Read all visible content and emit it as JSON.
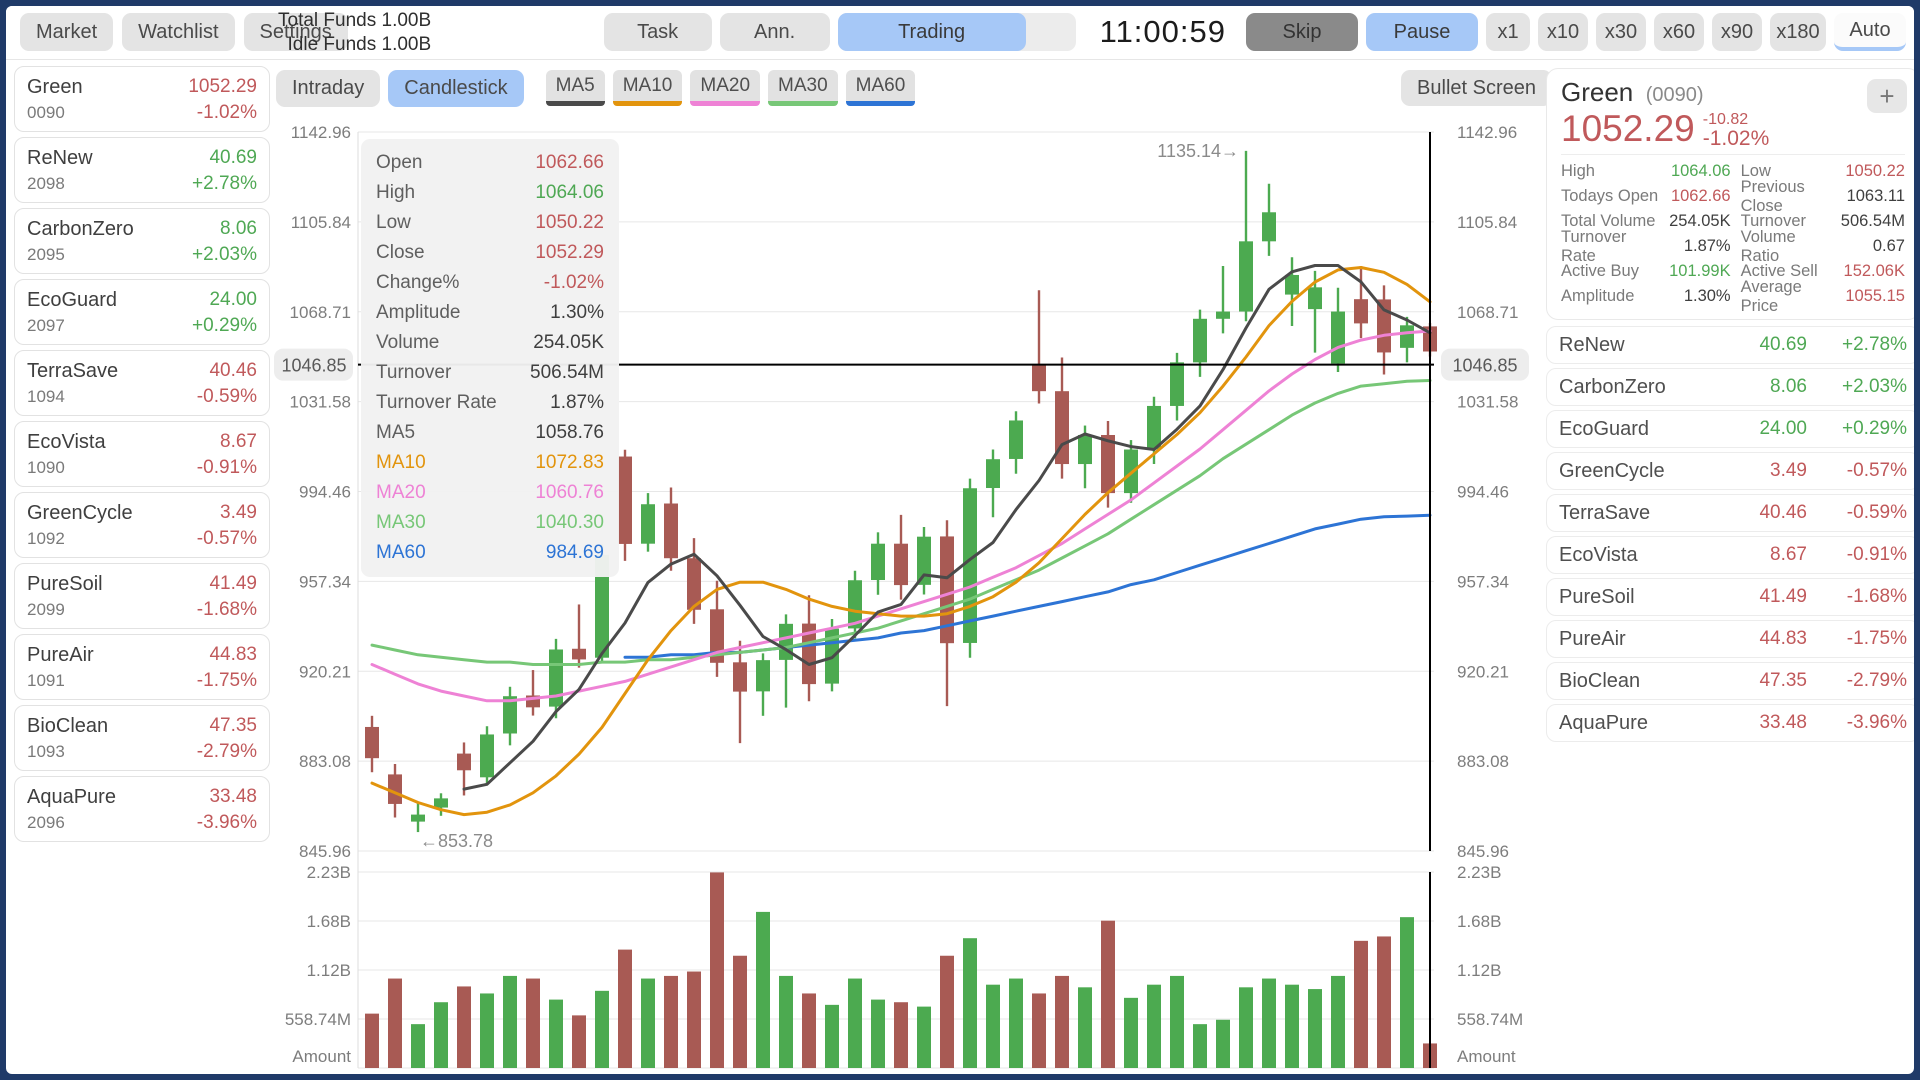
{
  "colors": {
    "up": "#4fa854",
    "down": "#c0595b",
    "candle_up": "#4caa50",
    "candle_down": "#a85a54",
    "dark": "#3f3f3f",
    "accent": "#a6c8f7",
    "ma5": "#4a4a4a",
    "ma10": "#e2940d",
    "ma20": "#ee82d5",
    "ma30": "#77c777",
    "ma60": "#2d74d5",
    "grid": "#e7e7e7",
    "axis_text": "#7d7d7d",
    "crosshair": "#000000",
    "pill_bg": "#ededed"
  },
  "topbar": {
    "nav": [
      "Market",
      "Watchlist",
      "Settings"
    ],
    "funds_line1": "Total Funds 1.00B",
    "funds_line2": "Idle Funds 1.00B",
    "task": "Task",
    "ann": "Ann.",
    "trading": "Trading",
    "clock": "11:00:59",
    "skip": "Skip",
    "pause": "Pause",
    "speeds": [
      "x1",
      "x10",
      "x30",
      "x60",
      "x90",
      "x180"
    ],
    "auto": "Auto"
  },
  "watchlist": [
    {
      "name": "Green",
      "code": "0090",
      "price": "1052.29",
      "pct": "-1.02%",
      "dir": "down"
    },
    {
      "name": "ReNew",
      "code": "2098",
      "price": "40.69",
      "pct": "+2.78%",
      "dir": "up"
    },
    {
      "name": "CarbonZero",
      "code": "2095",
      "price": "8.06",
      "pct": "+2.03%",
      "dir": "up"
    },
    {
      "name": "EcoGuard",
      "code": "2097",
      "price": "24.00",
      "pct": "+0.29%",
      "dir": "up"
    },
    {
      "name": "TerraSave",
      "code": "1094",
      "price": "40.46",
      "pct": "-0.59%",
      "dir": "down"
    },
    {
      "name": "EcoVista",
      "code": "1090",
      "price": "8.67",
      "pct": "-0.91%",
      "dir": "down"
    },
    {
      "name": "GreenCycle",
      "code": "1092",
      "price": "3.49",
      "pct": "-0.57%",
      "dir": "down"
    },
    {
      "name": "PureSoil",
      "code": "2099",
      "price": "41.49",
      "pct": "-1.68%",
      "dir": "down"
    },
    {
      "name": "PureAir",
      "code": "1091",
      "price": "44.83",
      "pct": "-1.75%",
      "dir": "down"
    },
    {
      "name": "BioClean",
      "code": "1093",
      "price": "47.35",
      "pct": "-2.79%",
      "dir": "down"
    },
    {
      "name": "AquaPure",
      "code": "2096",
      "price": "33.48",
      "pct": "-3.96%",
      "dir": "down"
    }
  ],
  "chart_header": {
    "tabs": [
      {
        "label": "Intraday",
        "active": false
      },
      {
        "label": "Candlestick",
        "active": true
      }
    ],
    "ma_buttons": [
      {
        "label": "MA5",
        "color": "#4a4a4a"
      },
      {
        "label": "MA10",
        "color": "#e2940d"
      },
      {
        "label": "MA20",
        "color": "#ee82d5"
      },
      {
        "label": "MA30",
        "color": "#77c777"
      },
      {
        "label": "MA60",
        "color": "#2d74d5"
      }
    ],
    "bullet_screen": "Bullet Screen"
  },
  "tooltip": {
    "rows": [
      {
        "label": "Open",
        "value": "1062.66",
        "c": "down",
        "lc": "dim"
      },
      {
        "label": "High",
        "value": "1064.06",
        "c": "up",
        "lc": "dim"
      },
      {
        "label": "Low",
        "value": "1050.22",
        "c": "down",
        "lc": "dim"
      },
      {
        "label": "Close",
        "value": "1052.29",
        "c": "down",
        "lc": "dim"
      },
      {
        "label": "Change%",
        "value": "-1.02%",
        "c": "down",
        "lc": "dim"
      },
      {
        "label": "Amplitude",
        "value": "1.30%",
        "c": "dark",
        "lc": "dim"
      },
      {
        "label": "Volume",
        "value": "254.05K",
        "c": "dark",
        "lc": "dim"
      },
      {
        "label": "Turnover",
        "value": "506.54M",
        "c": "dark",
        "lc": "dim"
      },
      {
        "label": "Turnover Rate",
        "value": "1.87%",
        "c": "dark",
        "lc": "dim"
      },
      {
        "label": "MA5",
        "value": "1058.76",
        "c": "dark",
        "lc": "dim"
      },
      {
        "label": "MA10",
        "value": "1072.83",
        "c": "ma10",
        "lc": "ma10"
      },
      {
        "label": "MA20",
        "value": "1060.76",
        "c": "ma20",
        "lc": "ma20"
      },
      {
        "label": "MA30",
        "value": "1040.30",
        "c": "ma30",
        "lc": "ma30"
      },
      {
        "label": "MA60",
        "value": "984.69",
        "c": "ma60",
        "lc": "ma60"
      }
    ]
  },
  "quote": {
    "name": "Green",
    "code": "(0090)",
    "add_button": "+",
    "price": "1052.29",
    "change_abs": "-10.82",
    "change_pct": "-1.02%",
    "dir": "down",
    "stats": [
      {
        "l": "High",
        "v": "1064.06",
        "c": "up"
      },
      {
        "l": "Low",
        "v": "1050.22",
        "c": "down"
      },
      {
        "l": "Todays Open",
        "v": "1062.66",
        "c": "down"
      },
      {
        "l": "Previous Close",
        "v": "1063.11",
        "c": "dark"
      },
      {
        "l": "Total Volume",
        "v": "254.05K",
        "c": "dark"
      },
      {
        "l": "Turnover",
        "v": "506.54M",
        "c": "dark"
      },
      {
        "l": "Turnover Rate",
        "v": "1.87%",
        "c": "dark"
      },
      {
        "l": "Volume Ratio",
        "v": "0.67",
        "c": "dark"
      },
      {
        "l": "Active Buy",
        "v": "101.99K",
        "c": "up"
      },
      {
        "l": "Active Sell",
        "v": "152.06K",
        "c": "down"
      },
      {
        "l": "Amplitude",
        "v": "1.30%",
        "c": "dark"
      },
      {
        "l": "Average Price",
        "v": "1055.15",
        "c": "down"
      }
    ],
    "list": [
      {
        "name": "ReNew",
        "price": "40.69",
        "pct": "+2.78%",
        "dir": "up"
      },
      {
        "name": "CarbonZero",
        "price": "8.06",
        "pct": "+2.03%",
        "dir": "up"
      },
      {
        "name": "EcoGuard",
        "price": "24.00",
        "pct": "+0.29%",
        "dir": "up"
      },
      {
        "name": "GreenCycle",
        "price": "3.49",
        "pct": "-0.57%",
        "dir": "down"
      },
      {
        "name": "TerraSave",
        "price": "40.46",
        "pct": "-0.59%",
        "dir": "down"
      },
      {
        "name": "EcoVista",
        "price": "8.67",
        "pct": "-0.91%",
        "dir": "down"
      },
      {
        "name": "PureSoil",
        "price": "41.49",
        "pct": "-1.68%",
        "dir": "down"
      },
      {
        "name": "PureAir",
        "price": "44.83",
        "pct": "-1.75%",
        "dir": "down"
      },
      {
        "name": "BioClean",
        "price": "47.35",
        "pct": "-2.79%",
        "dir": "down"
      },
      {
        "name": "AquaPure",
        "price": "33.48",
        "pct": "-3.96%",
        "dir": "down"
      }
    ]
  },
  "chart_data": {
    "type": "candlestick+volume",
    "price_axis": {
      "max": 1142.96,
      "min": 845.96,
      "ticks": [
        "1142.96",
        "1105.84",
        "1068.71",
        "1031.58",
        "994.46",
        "957.34",
        "920.21",
        "883.08",
        "845.96"
      ]
    },
    "volume_axis": {
      "max": 2.2349,
      "ticks": [
        {
          "v": 2.2349,
          "label": "2.23B"
        },
        {
          "v": 1.67622,
          "label": "1.68B"
        },
        {
          "v": 1.11748,
          "label": "1.12B"
        },
        {
          "v": 0.55874,
          "label": "558.74M"
        }
      ],
      "caption": "Amount"
    },
    "candles": [
      [
        897.2,
        901.8,
        878.5,
        884.3
      ],
      [
        877.6,
        881.9,
        859.8,
        865.4
      ],
      [
        858.1,
        866.2,
        853.78,
        861.0
      ],
      [
        863.9,
        869.8,
        860.5,
        867.7
      ],
      [
        886.2,
        890.8,
        868.9,
        879.3
      ],
      [
        876.4,
        897.5,
        873.8,
        894.1
      ],
      [
        894.5,
        913.8,
        889.6,
        909.9
      ],
      [
        910.2,
        920.7,
        901.9,
        905.3
      ],
      [
        905.6,
        933.6,
        900.8,
        929.2
      ],
      [
        929.5,
        947.8,
        921.7,
        925.1
      ],
      [
        925.8,
        972.6,
        923.9,
        968.3
      ],
      [
        1008.9,
        1011.7,
        965.8,
        972.8
      ],
      [
        972.9,
        993.8,
        969.6,
        989.2
      ],
      [
        989.5,
        996.1,
        961.7,
        966.9
      ],
      [
        966.9,
        975.2,
        939.8,
        945.6
      ],
      [
        945.8,
        957.6,
        917.9,
        923.7
      ],
      [
        923.9,
        932.8,
        890.5,
        911.8
      ],
      [
        911.9,
        927.6,
        901.8,
        924.8
      ],
      [
        924.9,
        943.7,
        905.2,
        939.8
      ],
      [
        939.9,
        951.6,
        907.8,
        914.9
      ],
      [
        915.1,
        941.8,
        911.9,
        937.8
      ],
      [
        937.9,
        961.7,
        933.8,
        957.8
      ],
      [
        957.9,
        977.6,
        951.8,
        972.9
      ],
      [
        972.9,
        984.8,
        949.8,
        955.8
      ],
      [
        955.9,
        979.8,
        951.9,
        975.8
      ],
      [
        975.9,
        982.6,
        905.8,
        931.8
      ],
      [
        931.9,
        999.8,
        925.8,
        995.8
      ],
      [
        995.9,
        1011.8,
        983.8,
        1007.8
      ],
      [
        1007.9,
        1027.6,
        1001.8,
        1023.8
      ],
      [
        1046.8,
        1077.6,
        1030.8,
        1035.9
      ],
      [
        1035.9,
        1049.8,
        999.8,
        1005.8
      ],
      [
        1005.8,
        1021.7,
        995.8,
        1017.8
      ],
      [
        1017.8,
        1023.6,
        987.8,
        993.8
      ],
      [
        993.8,
        1015.7,
        989.8,
        1011.8
      ],
      [
        1011.8,
        1033.6,
        1005.8,
        1029.8
      ],
      [
        1029.8,
        1051.7,
        1023.8,
        1047.8
      ],
      [
        1047.8,
        1069.6,
        1041.8,
        1065.8
      ],
      [
        1065.8,
        1087.6,
        1059.8,
        1068.8
      ],
      [
        1068.8,
        1135.14,
        1064.8,
        1097.8
      ],
      [
        1097.8,
        1121.6,
        1091.8,
        1109.8
      ],
      [
        1075.8,
        1091.2,
        1062.8,
        1083.9
      ],
      [
        1069.8,
        1085.6,
        1051.8,
        1078.8
      ],
      [
        1047.3,
        1078.6,
        1043.8,
        1068.8
      ],
      [
        1073.9,
        1087.6,
        1057.8,
        1063.9
      ],
      [
        1073.8,
        1079.6,
        1042.8,
        1051.9
      ],
      [
        1053.8,
        1066.6,
        1047.8,
        1063.11
      ],
      [
        1062.66,
        1064.06,
        1050.22,
        1052.29
      ]
    ],
    "volumes": [
      0.62,
      1.02,
      0.5,
      0.75,
      0.93,
      0.85,
      1.05,
      1.02,
      0.78,
      0.6,
      0.88,
      1.35,
      1.02,
      1.05,
      1.1,
      2.23,
      1.28,
      1.78,
      1.05,
      0.85,
      0.72,
      1.02,
      0.78,
      0.75,
      0.7,
      1.28,
      1.48,
      0.95,
      1.02,
      0.85,
      1.05,
      0.92,
      1.68,
      0.8,
      0.95,
      1.05,
      0.5,
      0.55,
      0.92,
      1.02,
      0.95,
      0.9,
      1.05,
      1.45,
      1.5,
      1.72,
      0.28
    ],
    "ma": {
      "ma10": [
        874,
        870,
        866,
        863,
        861,
        862,
        865,
        870,
        877,
        886,
        897,
        911,
        925,
        937,
        947,
        954,
        957,
        957,
        954,
        950,
        947,
        945,
        944,
        943,
        943,
        944,
        947,
        951,
        957,
        965,
        975,
        985,
        994,
        1002,
        1010,
        1018,
        1027,
        1038,
        1050,
        1063,
        1073,
        1081,
        1086,
        1087,
        1085,
        1080,
        1072.83
      ],
      "ma20": [
        923,
        919,
        915,
        912,
        910,
        908,
        908,
        909,
        910,
        912,
        914,
        916,
        919,
        922,
        925,
        928,
        930,
        932,
        934,
        936,
        938,
        940,
        943,
        946,
        949,
        952,
        955,
        959,
        963,
        968,
        973,
        979,
        985,
        991,
        998,
        1005,
        1012,
        1020,
        1028,
        1036,
        1043,
        1049,
        1054,
        1057,
        1059,
        1060,
        1060.76
      ],
      "ma30": [
        931,
        929,
        927,
        926,
        925,
        924,
        924,
        923,
        923,
        923,
        924,
        924,
        925,
        925,
        926,
        927,
        928,
        929,
        930,
        932,
        934,
        936,
        938,
        941,
        944,
        947,
        950,
        954,
        958,
        962,
        967,
        972,
        977,
        983,
        989,
        995,
        1001,
        1008,
        1014,
        1020,
        1026,
        1031,
        1035,
        1038,
        1039,
        1040,
        1040.3
      ],
      "ma60": [
        null,
        null,
        null,
        null,
        null,
        null,
        null,
        null,
        null,
        null,
        null,
        926,
        926,
        927,
        927,
        928,
        928,
        929,
        930,
        931,
        932,
        933,
        934,
        936,
        937,
        939,
        941,
        943,
        945,
        947,
        949,
        951,
        953,
        956,
        958,
        961,
        964,
        967,
        970,
        973,
        976,
        979,
        981,
        983,
        984,
        984.3,
        984.69
      ]
    },
    "crosshair": {
      "price": 1046.85,
      "label": "1046.85",
      "candle_index": 46
    },
    "annotations": {
      "high": {
        "index": 38,
        "price": 1135.14,
        "text": "1135.14→"
      },
      "low": {
        "index": 2,
        "price": 853.78,
        "text": "←853.78"
      }
    }
  }
}
